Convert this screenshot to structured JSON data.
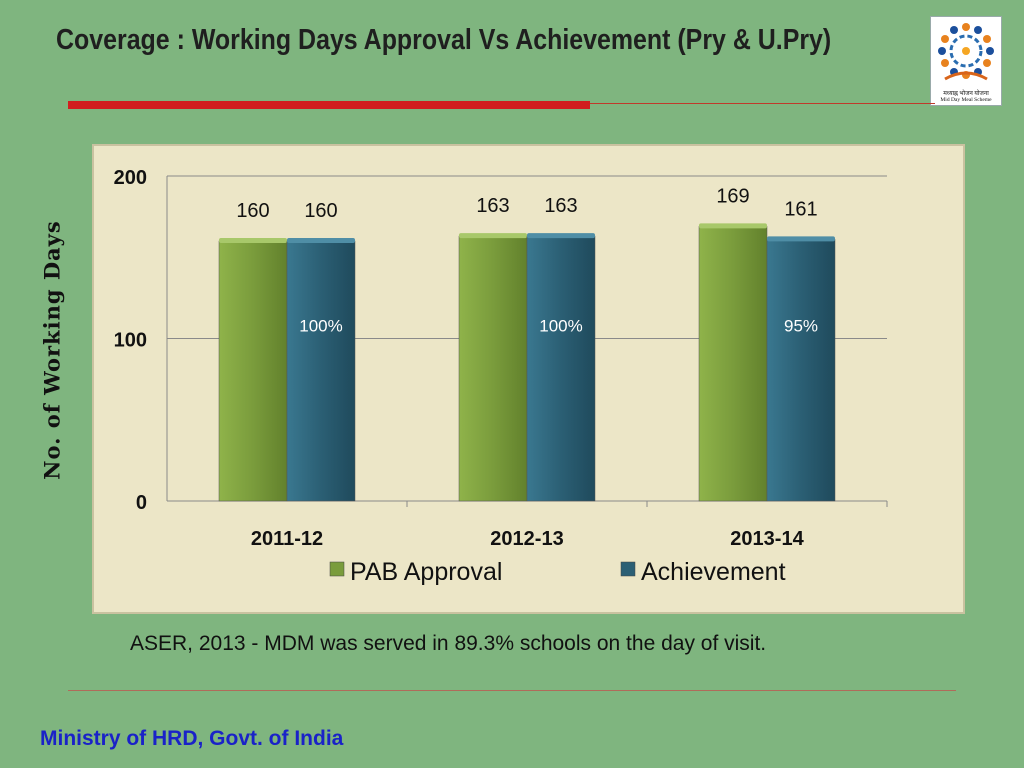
{
  "slide": {
    "title": "Coverage : Working Days Approval Vs Achievement (Pry & U.Pry)",
    "logo_text_hindi": "मध्याह्न भोजन योजना",
    "logo_text_en": "Mid Day Meal Scheme",
    "note": "ASER, 2013 -  MDM was served in 89.3% schools on the day of visit.",
    "footer": "Ministry of HRD, Govt. of India"
  },
  "colors": {
    "background": "#7fb57f",
    "chart_background": "#ece6c7",
    "pab": "#7a9c3c",
    "achievement": "#2b5f74",
    "accent_red": "#d11f1f",
    "footer_text": "#1a22c8"
  },
  "chart_data": {
    "type": "bar",
    "categories": [
      "2011-12",
      "2012-13",
      "2013-14"
    ],
    "series": [
      {
        "name": "PAB Approval",
        "values": [
          160,
          163,
          169
        ]
      },
      {
        "name": "Achievement",
        "values": [
          160,
          163,
          161
        ]
      }
    ],
    "percent_labels": [
      "100%",
      "100%",
      "95%"
    ],
    "ylabel": "No. of Working Days",
    "xlabel": "",
    "ylim": [
      0,
      200
    ],
    "yticks": [
      0,
      100,
      200
    ],
    "grid": true,
    "legend": "bottom"
  }
}
